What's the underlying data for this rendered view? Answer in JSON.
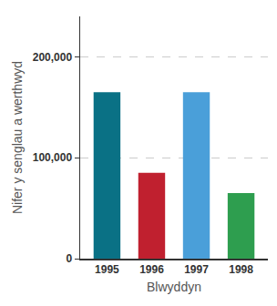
{
  "chart_data": {
    "type": "bar",
    "x_label": "Blwyddyn",
    "y_label": "Nifer y senglau a werthwyd",
    "categories": [
      "1995",
      "1996",
      "1997",
      "1998"
    ],
    "values": [
      165000,
      85000,
      165000,
      65000
    ],
    "colors": [
      "#0a7185",
      "#c0202f",
      "#4a9fd9",
      "#2e9e4f"
    ],
    "ylim": [
      0,
      240000
    ],
    "yticks": [
      0,
      {
        "value": 100000,
        "label": "100,000"
      },
      {
        "value": 200000,
        "label": "200,000"
      }
    ],
    "grid": true
  }
}
